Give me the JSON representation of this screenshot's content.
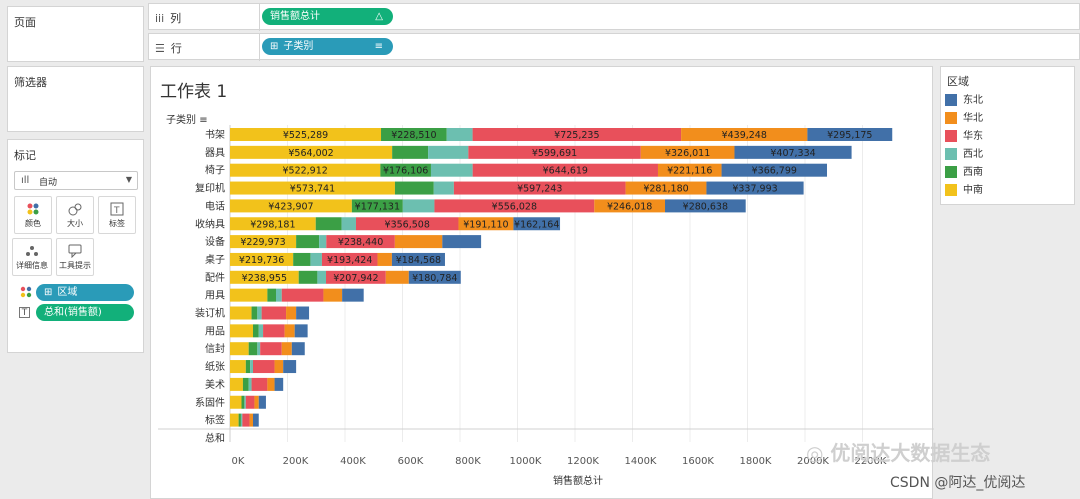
{
  "left": {
    "pages_title": "页面",
    "filters_title": "筛选器",
    "marks_title": "标记",
    "marks_type": "自动",
    "buttons": [
      {
        "label": "颜色",
        "icon": "color-icon"
      },
      {
        "label": "大小",
        "icon": "size-icon"
      },
      {
        "label": "标签",
        "icon": "label-icon"
      },
      {
        "label": "详细信息",
        "icon": "detail-icon"
      },
      {
        "label": "工具提示",
        "icon": "tooltip-icon"
      }
    ],
    "mark_pills": [
      {
        "prefix": "⊞",
        "label": "区域"
      },
      {
        "label": "总和(销售额)"
      }
    ]
  },
  "shelves": {
    "columns_label": "列",
    "columns_pill": "销售额总计",
    "rows_label": "行",
    "rows_pill": "子类别"
  },
  "worksheet": {
    "title": "工作表 1",
    "row_header": "子类别"
  },
  "legend": {
    "title": "区域",
    "items": [
      {
        "name": "东北",
        "color": "#4170a8"
      },
      {
        "name": "华北",
        "color": "#f28e1c"
      },
      {
        "name": "华东",
        "color": "#e8505b"
      },
      {
        "name": "西北",
        "color": "#6cbfb0"
      },
      {
        "name": "西南",
        "color": "#3b9f45"
      },
      {
        "name": "中南",
        "color": "#f2c21b"
      }
    ]
  },
  "chart_data": {
    "type": "bar",
    "orientation": "horizontal-stacked",
    "stack_order": [
      "中南",
      "西南",
      "西北",
      "华东",
      "华北",
      "东北"
    ],
    "colors": {
      "中南": "#f2c21b",
      "西南": "#3b9f45",
      "西北": "#6cbfb0",
      "华东": "#e8505b",
      "华北": "#f28e1c",
      "东北": "#4170a8"
    },
    "xlabel": "销售额总计",
    "xlim": [
      0,
      2400000
    ],
    "x_ticks": [
      "0K",
      "200K",
      "400K",
      "600K",
      "800K",
      "1000K",
      "1200K",
      "1400K",
      "1600K",
      "1800K",
      "2000K",
      "2200K"
    ],
    "grid": true,
    "rows": [
      {
        "category": "书架",
        "values": [
          525289,
          228510,
          90000,
          725235,
          439248,
          295175
        ],
        "labels": [
          "¥525,289",
          "¥228,510",
          "",
          "¥725,235",
          "¥439,248",
          "¥295,175"
        ]
      },
      {
        "category": "器具",
        "values": [
          564002,
          125000,
          140000,
          599691,
          326011,
          407334
        ],
        "labels": [
          "¥564,002",
          "",
          "",
          "¥599,691",
          "¥326,011",
          "¥407,334"
        ]
      },
      {
        "category": "椅子",
        "values": [
          522912,
          176106,
          145000,
          644619,
          221116,
          366799
        ],
        "labels": [
          "¥522,912",
          "¥176,106",
          "",
          "¥644,619",
          "¥221,116",
          "¥366,799"
        ]
      },
      {
        "category": "复印机",
        "values": [
          573741,
          135000,
          70000,
          597243,
          281180,
          337993
        ],
        "labels": [
          "¥573,741",
          "",
          "",
          "¥597,243",
          "¥281,180",
          "¥337,993"
        ]
      },
      {
        "category": "电话",
        "values": [
          423907,
          177131,
          110000,
          556028,
          246018,
          280638
        ],
        "labels": [
          "¥423,907",
          "¥177,131",
          "",
          "¥556,028",
          "¥246,018",
          "¥280,638"
        ]
      },
      {
        "category": "收纳具",
        "values": [
          298181,
          90000,
          50000,
          356508,
          191110,
          162164
        ],
        "labels": [
          "¥298,181",
          "",
          "",
          "¥356,508",
          "¥191,110",
          "¥162,164"
        ]
      },
      {
        "category": "设备",
        "values": [
          229973,
          80000,
          25000,
          238440,
          165000,
          135000
        ],
        "labels": [
          "¥229,973",
          "",
          "",
          "¥238,440",
          "",
          ""
        ]
      },
      {
        "category": "桌子",
        "values": [
          219736,
          60000,
          40000,
          193424,
          50000,
          184568
        ],
        "labels": [
          "¥219,736",
          "",
          "",
          "¥193,424",
          "",
          "¥184,568"
        ]
      },
      {
        "category": "配件",
        "values": [
          238955,
          65000,
          30000,
          207942,
          80000,
          180784
        ],
        "labels": [
          "¥238,955",
          "",
          "",
          "¥207,942",
          "",
          "¥180,784"
        ]
      },
      {
        "category": "用具",
        "values": [
          130000,
          30000,
          20000,
          145000,
          65000,
          75000
        ],
        "labels": [
          "",
          "",
          "",
          "",
          "",
          ""
        ]
      },
      {
        "category": "装订机",
        "values": [
          75000,
          20000,
          15000,
          85000,
          35000,
          45000
        ],
        "labels": [
          "",
          "",
          "",
          "",
          "",
          ""
        ]
      },
      {
        "category": "用品",
        "values": [
          80000,
          20000,
          15000,
          75000,
          35000,
          45000
        ],
        "labels": [
          "",
          "",
          "",
          "",
          "",
          ""
        ]
      },
      {
        "category": "信封",
        "values": [
          65000,
          30000,
          10000,
          75000,
          35000,
          45000
        ],
        "labels": [
          "",
          "",
          "",
          "",
          "",
          ""
        ]
      },
      {
        "category": "纸张",
        "values": [
          55000,
          15000,
          10000,
          75000,
          30000,
          45000
        ],
        "labels": [
          "",
          "",
          "",
          "",
          "",
          ""
        ]
      },
      {
        "category": "美术",
        "values": [
          45000,
          20000,
          10000,
          55000,
          25000,
          30000
        ],
        "labels": [
          "",
          "",
          "",
          "",
          "",
          ""
        ]
      },
      {
        "category": "系固件",
        "values": [
          40000,
          10000,
          5000,
          30000,
          15000,
          25000
        ],
        "labels": [
          "",
          "",
          "",
          "",
          "",
          ""
        ]
      },
      {
        "category": "标签",
        "values": [
          30000,
          8000,
          5000,
          25000,
          12000,
          20000
        ],
        "labels": [
          "",
          "",
          "",
          "",
          "",
          ""
        ]
      },
      {
        "category": "总和",
        "values": [
          0,
          0,
          0,
          0,
          0,
          0
        ],
        "labels": [
          "",
          "",
          "",
          "",
          "",
          ""
        ]
      }
    ]
  },
  "watermark": {
    "wechat": "优阅达大数据生态",
    "csdn": "CSDN @阿达_优阅达"
  }
}
